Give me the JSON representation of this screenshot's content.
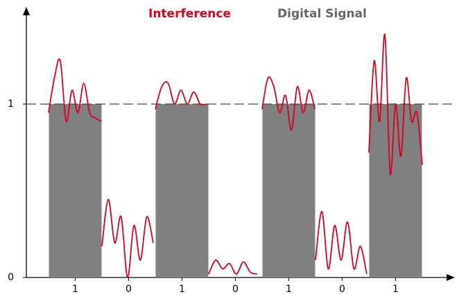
{
  "chart_data": {
    "type": "bar",
    "categories": [
      "1",
      "0",
      "1",
      "0",
      "1",
      "0",
      "1"
    ],
    "series": [
      {
        "name": "Interference",
        "color": "#d7001e",
        "type": "line",
        "x": [
          0,
          0.11,
          0.22,
          0.33,
          0.44,
          0.55,
          0.66,
          0.77,
          0.88,
          0.99,
          null,
          1.0,
          1.12,
          1.24,
          1.36,
          1.48,
          1.6,
          1.72,
          1.84,
          1.96,
          null,
          2.0,
          2.12,
          2.24,
          2.36,
          2.48,
          2.6,
          2.72,
          2.84,
          2.96,
          null,
          3.0,
          3.13,
          3.26,
          3.39,
          3.52,
          3.65,
          3.78,
          3.91,
          null,
          4.0,
          4.11,
          4.22,
          4.33,
          4.44,
          4.55,
          4.66,
          4.77,
          4.88,
          4.99,
          null,
          5.0,
          5.12,
          5.24,
          5.36,
          5.48,
          5.6,
          5.72,
          5.84,
          5.96,
          null,
          6.0,
          6.1,
          6.2,
          6.3,
          6.4,
          6.5,
          6.6,
          6.7,
          6.8,
          6.9,
          7.0
        ],
        "values": [
          0.95,
          1.15,
          1.25,
          0.9,
          1.08,
          0.95,
          1.12,
          0.95,
          0.92,
          0.9,
          null,
          0.18,
          0.45,
          0.2,
          0.35,
          0.0,
          0.3,
          0.1,
          0.35,
          0.2,
          null,
          0.97,
          1.1,
          1.12,
          1.0,
          1.08,
          1.0,
          1.07,
          1.0,
          1.0,
          null,
          0.02,
          0.1,
          0.05,
          0.08,
          0.02,
          0.09,
          0.03,
          0.02,
          null,
          0.97,
          1.15,
          1.1,
          0.95,
          1.05,
          0.85,
          1.1,
          0.95,
          1.08,
          0.97,
          null,
          0.1,
          0.38,
          0.05,
          0.3,
          0.1,
          0.32,
          0.05,
          0.18,
          0.02,
          null,
          0.72,
          1.25,
          0.9,
          1.4,
          0.6,
          1.0,
          0.7,
          1.15,
          0.9,
          0.95,
          0.65
        ]
      },
      {
        "name": "Digital Signal",
        "color": "#808080",
        "values": [
          1,
          0,
          1,
          0,
          1,
          0,
          1
        ]
      }
    ],
    "xlim": [
      0,
      7
    ],
    "ylim": [
      0,
      1.5
    ],
    "yticks": [
      0,
      1
    ],
    "grid": true
  }
}
